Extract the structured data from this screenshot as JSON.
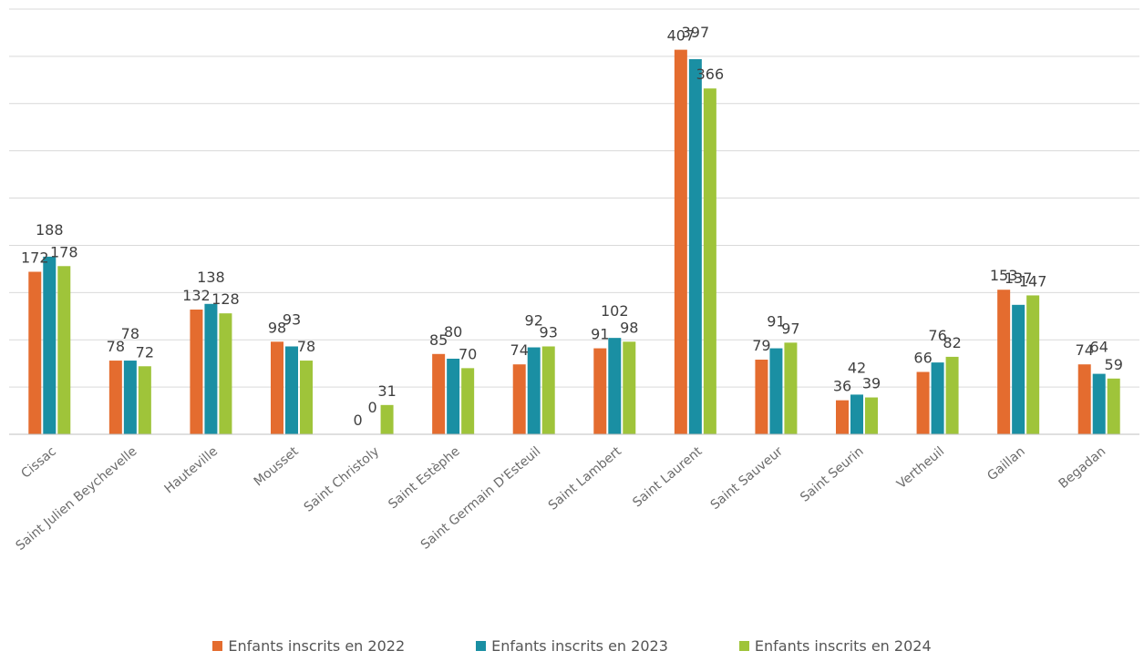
{
  "chart_data": {
    "type": "bar",
    "categories": [
      "Cissac",
      "Saint Julien Beychevelle",
      "Hauteville",
      "Mousset",
      "Saint Christoly",
      "Saint Estèphe",
      "Saint Germain D'Esteuil",
      "Saint Lambert",
      "Saint Laurent",
      "Saint Sauveur",
      "Saint Seurin",
      "Vertheuil",
      "Gaillan",
      "Begadan"
    ],
    "series": [
      {
        "name": "Enfants inscrits en 2022",
        "color": "#e46c2f",
        "values": [
          172,
          78,
          132,
          98,
          0,
          85,
          74,
          91,
          407,
          79,
          36,
          66,
          153,
          74
        ]
      },
      {
        "name": "Enfants inscrits en 2023",
        "color": "#1a8fa3",
        "values": [
          188,
          78,
          138,
          93,
          0,
          80,
          92,
          102,
          397,
          91,
          42,
          76,
          137,
          64
        ]
      },
      {
        "name": "Enfants inscrits en 2024",
        "color": "#9fc43a",
        "values": [
          178,
          72,
          128,
          78,
          31,
          70,
          93,
          98,
          366,
          97,
          39,
          82,
          147,
          59
        ]
      }
    ],
    "ylim": [
      0,
      450
    ],
    "grid": true,
    "legend_position": "bottom"
  }
}
